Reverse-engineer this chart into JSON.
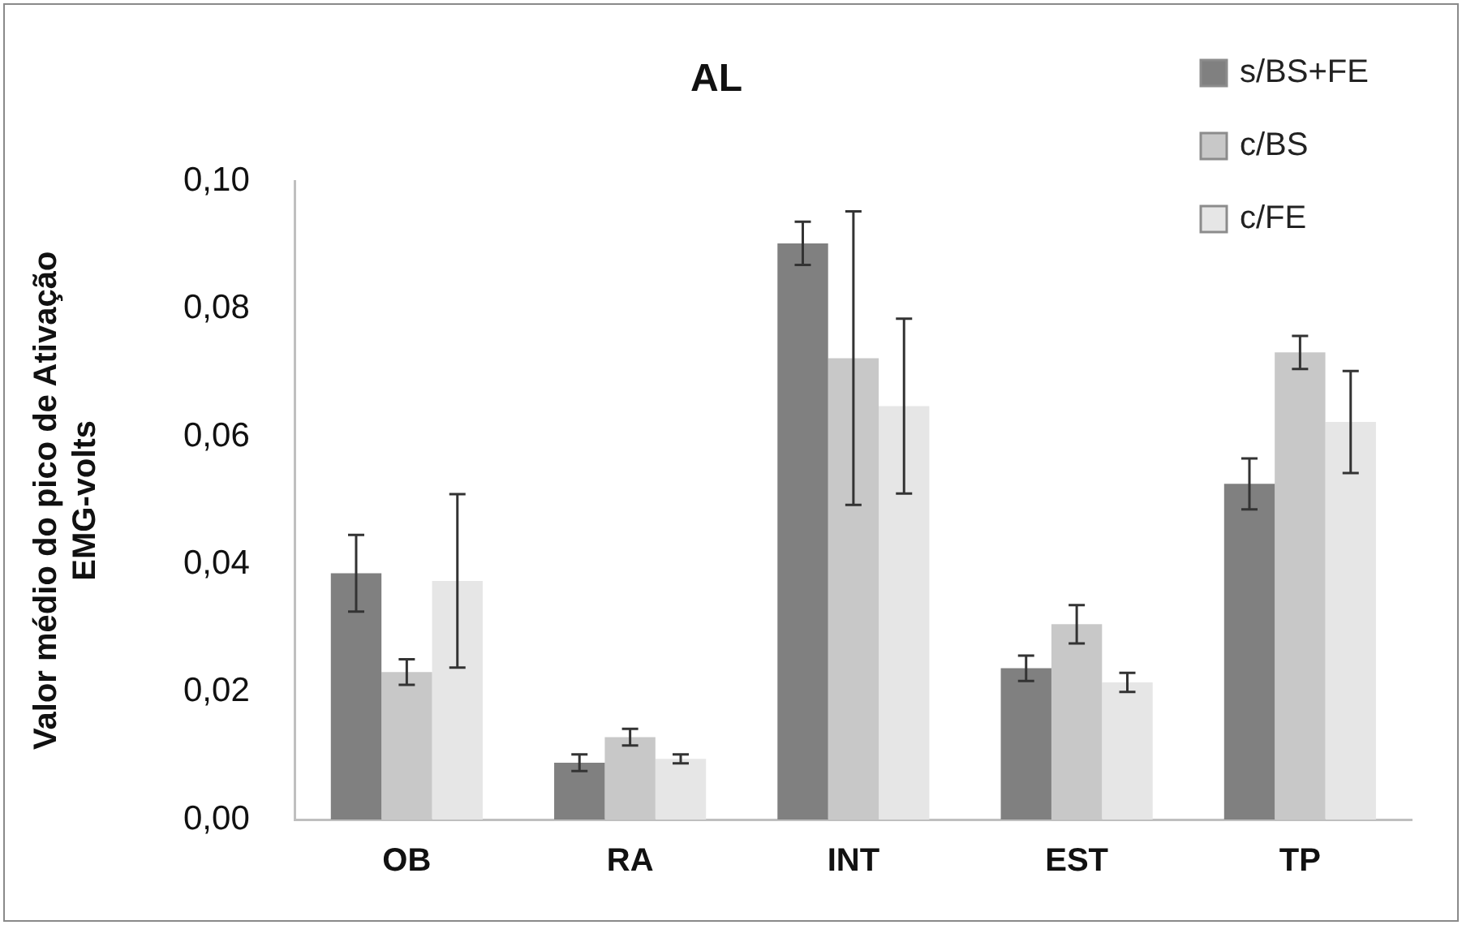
{
  "chart_data": {
    "type": "bar",
    "title": "AL",
    "ylabel": "Valor médio do pico de Ativação\nEMG-volts",
    "categories": [
      "OB",
      "RA",
      "INT",
      "EST",
      "TP"
    ],
    "series": [
      {
        "name": "s/BS+FE",
        "color": "#808080",
        "values": [
          0.0386,
          0.0089,
          0.0903,
          0.0237,
          0.0526
        ],
        "errors": [
          0.006,
          0.0013,
          0.0034,
          0.002,
          0.004
        ]
      },
      {
        "name": "c/BS",
        "color": "#c8c8c8",
        "values": [
          0.0231,
          0.0129,
          0.0723,
          0.0306,
          0.0732
        ],
        "errors": [
          0.002,
          0.0013,
          0.023,
          0.003,
          0.0026
        ]
      },
      {
        "name": "c/FE",
        "color": "#e6e6e6",
        "values": [
          0.0374,
          0.0095,
          0.0648,
          0.0215,
          0.0623
        ],
        "errors": [
          0.0136,
          0.0007,
          0.0137,
          0.0015,
          0.008
        ]
      }
    ],
    "ylim": [
      0,
      0.1
    ],
    "yticks": [
      {
        "value": 0,
        "label": "0,00"
      },
      {
        "value": 0.02,
        "label": "0,02"
      },
      {
        "value": 0.04,
        "label": "0,04"
      },
      {
        "value": 0.06,
        "label": "0,06"
      },
      {
        "value": 0.08,
        "label": "0,08"
      },
      {
        "value": 0.1,
        "label": "0,10"
      }
    ],
    "grid": false,
    "legend": "top right"
  }
}
